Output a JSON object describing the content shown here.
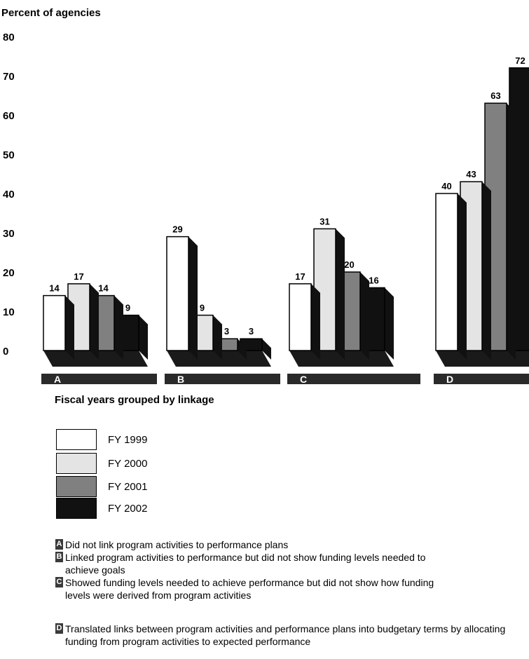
{
  "chart_data": {
    "type": "bar",
    "ylabel": "Percent of agencies",
    "xlabel": "Fiscal years grouped by linkage",
    "ylim": [
      0,
      80
    ],
    "yticks": [
      0,
      10,
      20,
      30,
      40,
      50,
      60,
      70,
      80
    ],
    "categories": [
      "A",
      "B",
      "C",
      "D"
    ],
    "series": [
      {
        "name": "FY 1999",
        "values": [
          14,
          29,
          17,
          40
        ],
        "color": "#ffffff"
      },
      {
        "name": "FY 2000",
        "values": [
          17,
          9,
          31,
          43
        ],
        "color": "#e4e4e4"
      },
      {
        "name": "FY 2001",
        "values": [
          14,
          3,
          20,
          63
        ],
        "color": "#808080"
      },
      {
        "name": "FY 2002",
        "values": [
          9,
          3,
          16,
          72
        ],
        "color": "#111111"
      }
    ],
    "notes": [
      {
        "key": "A",
        "text": "Did not link program activities to performance plans"
      },
      {
        "key": "B",
        "text": "Linked program activities to performance but did not show funding levels needed to achieve goals"
      },
      {
        "key": "C",
        "text": "Showed funding levels needed to achieve performance but did not show how funding levels were derived from program activities"
      },
      {
        "key": "D",
        "text": "Translated links between program activities and performance plans into budgetary terms by allocating funding from program activities to expected performance"
      }
    ]
  }
}
